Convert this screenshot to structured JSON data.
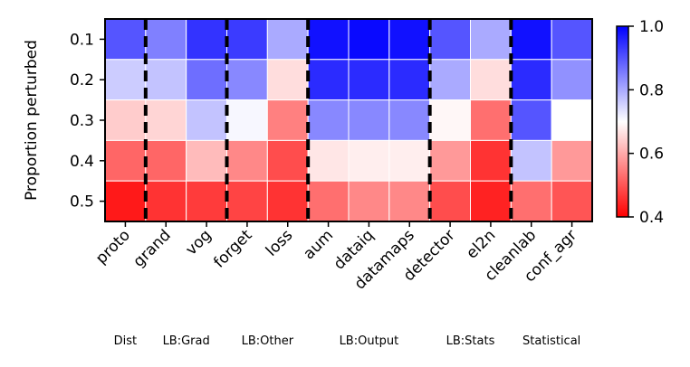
{
  "chart_data": {
    "type": "heatmap",
    "title": "",
    "ylabel": "Proportion perturbed",
    "xlabel": "",
    "rows": [
      "0.1",
      "0.2",
      "0.3",
      "0.4",
      "0.5"
    ],
    "columns": [
      "proto",
      "grand",
      "vog",
      "forget",
      "loss",
      "aum",
      "dataiq",
      "datamaps",
      "detector",
      "el2n",
      "cleanlab",
      "conf_agr"
    ],
    "values": [
      [
        0.9,
        0.85,
        0.94,
        0.93,
        0.8,
        0.98,
        0.99,
        0.98,
        0.9,
        0.8,
        0.98,
        0.9
      ],
      [
        0.76,
        0.77,
        0.87,
        0.84,
        0.66,
        0.95,
        0.95,
        0.95,
        0.8,
        0.66,
        0.95,
        0.83
      ],
      [
        0.64,
        0.65,
        0.77,
        0.71,
        0.55,
        0.84,
        0.84,
        0.84,
        0.69,
        0.53,
        0.9,
        0.7
      ],
      [
        0.52,
        0.52,
        0.62,
        0.56,
        0.49,
        0.67,
        0.68,
        0.68,
        0.58,
        0.46,
        0.77,
        0.58
      ],
      [
        0.43,
        0.46,
        0.47,
        0.48,
        0.46,
        0.53,
        0.56,
        0.56,
        0.49,
        0.44,
        0.53,
        0.5
      ]
    ],
    "groups": [
      {
        "label": "Dist",
        "columns": [
          "proto"
        ]
      },
      {
        "label": "LB:Grad",
        "columns": [
          "grand",
          "vog"
        ]
      },
      {
        "label": "LB:Other",
        "columns": [
          "forget",
          "loss"
        ]
      },
      {
        "label": "LB:Output",
        "columns": [
          "aum",
          "dataiq",
          "datamaps"
        ]
      },
      {
        "label": "LB:Stats",
        "columns": [
          "detector",
          "el2n"
        ]
      },
      {
        "label": "Statistical",
        "columns": [
          "cleanlab",
          "conf_agr"
        ]
      }
    ],
    "colormap": "bwr_r",
    "colorbar": {
      "min": 0.4,
      "max": 1.0,
      "ticks": [
        "0.4",
        "0.6",
        "0.8",
        "1.0"
      ]
    },
    "colors": {
      "low": "#ff0000",
      "mid": "#ffffff",
      "high": "#0000ff"
    }
  }
}
